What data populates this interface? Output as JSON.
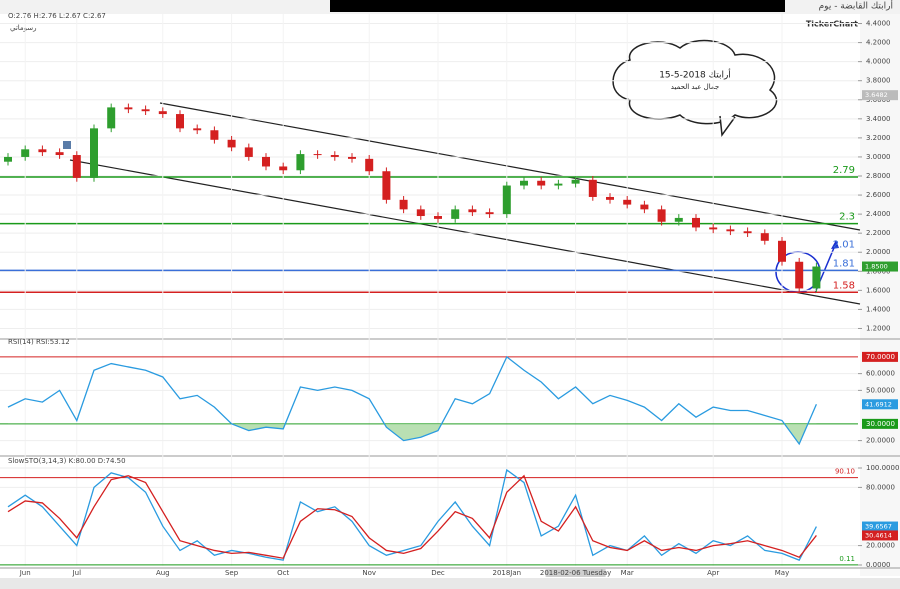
{
  "header": {
    "ohlc": "O:2.76 H:2.76 L:2.67 C:2.67",
    "subtitle": "رسوماتي",
    "title": "أرابتك القابضة - يوم",
    "brand": "TickerChart",
    "note_line1": "أرابتك 2018-5-15",
    "note_line2": "جمال عبد الحميد"
  },
  "chart_data": [
    {
      "type": "candlestick",
      "categories": [
        null,
        "Jun",
        null,
        null,
        "Jul",
        null,
        null,
        null,
        null,
        "Aug",
        null,
        null,
        null,
        "Sep",
        null,
        null,
        "Oct",
        null,
        null,
        null,
        null,
        "Nov",
        null,
        null,
        null,
        "Dec",
        null,
        null,
        null,
        "2018Jan",
        null,
        null,
        null,
        "2018-02-06 Tuesday",
        null,
        null,
        "Mar",
        null,
        null,
        null,
        null,
        "Apr",
        null,
        null,
        null,
        "May",
        null,
        null
      ],
      "open": [
        2.95,
        3.0,
        3.08,
        3.05,
        3.02,
        2.78,
        3.3,
        3.52,
        3.5,
        3.48,
        3.45,
        3.3,
        3.28,
        3.18,
        3.1,
        3.0,
        2.9,
        2.86,
        3.03,
        3.02,
        3.0,
        2.98,
        2.85,
        2.55,
        2.45,
        2.38,
        2.35,
        2.45,
        2.42,
        2.4,
        2.7,
        2.75,
        2.7,
        2.72,
        2.76,
        2.58,
        2.55,
        2.5,
        2.45,
        2.32,
        2.36,
        2.26,
        2.24,
        2.22,
        2.2,
        2.12,
        1.9,
        1.62
      ],
      "high": [
        3.04,
        3.12,
        3.12,
        3.09,
        3.06,
        3.34,
        3.56,
        3.56,
        3.54,
        3.52,
        3.49,
        3.34,
        3.32,
        3.22,
        3.14,
        3.04,
        2.94,
        3.07,
        3.07,
        3.06,
        3.04,
        3.02,
        2.89,
        2.59,
        2.49,
        2.42,
        2.49,
        2.49,
        2.46,
        2.74,
        2.79,
        2.79,
        2.76,
        2.8,
        2.8,
        2.62,
        2.59,
        2.54,
        2.49,
        2.4,
        2.4,
        2.3,
        2.28,
        2.26,
        2.24,
        2.16,
        1.94,
        1.89
      ],
      "low": [
        2.91,
        2.96,
        3.01,
        2.98,
        2.74,
        2.74,
        3.26,
        3.46,
        3.44,
        3.41,
        3.26,
        3.24,
        3.14,
        3.06,
        2.96,
        2.86,
        2.82,
        2.82,
        2.98,
        2.96,
        2.94,
        2.81,
        2.51,
        2.41,
        2.34,
        2.31,
        2.31,
        2.38,
        2.36,
        2.36,
        2.66,
        2.66,
        2.66,
        2.68,
        2.54,
        2.51,
        2.46,
        2.41,
        2.28,
        2.28,
        2.22,
        2.2,
        2.18,
        2.16,
        2.08,
        1.86,
        1.58,
        1.58
      ],
      "close": [
        3.0,
        3.08,
        3.05,
        3.02,
        2.78,
        3.3,
        3.52,
        3.5,
        3.48,
        3.45,
        3.3,
        3.28,
        3.18,
        3.1,
        3.0,
        2.9,
        2.86,
        3.03,
        3.02,
        3.0,
        2.98,
        2.85,
        2.55,
        2.45,
        2.38,
        2.35,
        2.45,
        2.42,
        2.4,
        2.7,
        2.75,
        2.7,
        2.72,
        2.76,
        2.58,
        2.55,
        2.5,
        2.45,
        2.32,
        2.36,
        2.26,
        2.24,
        2.22,
        2.2,
        2.12,
        1.9,
        1.62,
        1.85
      ],
      "up_color": "#2e9e2e",
      "down_color": "#d42020",
      "ylim": [
        1.1,
        4.5
      ],
      "yticks": [
        {
          "value": 1.2,
          "label": "1.2000"
        },
        {
          "value": 1.4,
          "label": "1.4000"
        },
        {
          "value": 1.6,
          "label": "1.6000"
        },
        {
          "value": 1.8,
          "label": "1.8000"
        },
        {
          "value": 2.0,
          "label": "2.0000"
        },
        {
          "value": 2.2,
          "label": "2.2000"
        },
        {
          "value": 2.4,
          "label": "2.4000"
        },
        {
          "value": 2.6,
          "label": "2.6000"
        },
        {
          "value": 2.8,
          "label": "2.8000"
        },
        {
          "value": 3.0,
          "label": "3.0000"
        },
        {
          "value": 3.2,
          "label": "3.2000"
        },
        {
          "value": 3.4,
          "label": "3.4000"
        },
        {
          "value": 3.6,
          "label": "3.6000"
        },
        {
          "value": 3.8,
          "label": "3.8000"
        },
        {
          "value": 4.0,
          "label": "4.0000"
        },
        {
          "value": 4.2,
          "label": "4.2000"
        },
        {
          "value": 4.4,
          "label": "4.4000"
        }
      ],
      "levels": [
        {
          "value": 2.79,
          "color": "#1a9a1a",
          "line": true
        },
        {
          "value": 2.3,
          "color": "#1a9a1a",
          "line": true
        },
        {
          "value": 2.01,
          "color": "#3a6fd8",
          "line": false
        },
        {
          "value": 1.81,
          "color": "#3a6fd8",
          "line": true
        },
        {
          "value": 1.58,
          "color": "#d42020",
          "line": true
        }
      ],
      "axis_labels": [
        {
          "value": 3.6482,
          "label": "3.6482",
          "color": "#bbbbbb"
        },
        {
          "value": 1.85,
          "label": "1.8500",
          "color": "#2e9e2e"
        }
      ]
    },
    {
      "type": "line",
      "title": "RSI(14) RSI:53.12",
      "series": [
        {
          "name": "RSI",
          "color": "#2a9be0",
          "values": [
            40,
            45,
            43,
            50,
            32,
            62,
            66,
            64,
            62,
            58,
            45,
            47,
            40,
            30,
            26,
            28,
            27,
            52,
            50,
            52,
            50,
            45,
            28,
            20,
            22,
            26,
            45,
            42,
            48,
            70,
            62,
            55,
            45,
            52,
            42,
            47,
            44,
            40,
            32,
            42,
            34,
            40,
            38,
            38,
            35,
            32,
            18,
            41.69
          ]
        }
      ],
      "fill_below": {
        "value": 30,
        "color": "#a8d8a0"
      },
      "ylim": [
        12,
        76.5
      ],
      "yticks": [
        {
          "value": 20,
          "label": "20.0000"
        },
        {
          "value": 50,
          "label": "50.0000"
        },
        {
          "value": 60,
          "label": "60.0000"
        }
      ],
      "levels": [
        {
          "value": 70,
          "label": "70.0000",
          "color": "#d42020"
        },
        {
          "value": 30,
          "label": "30.0000",
          "color": "#1a9a1a"
        }
      ],
      "axis_labels": [
        {
          "value": 41.6912,
          "label": "41.6912",
          "color": "#2a9be0"
        }
      ]
    },
    {
      "type": "line",
      "title": "SlowSTO(3,14,3) K:80.00 D:74.50",
      "series": [
        {
          "name": "K",
          "color": "#2a9be0",
          "values": [
            60,
            72,
            60,
            40,
            20,
            80,
            95,
            90,
            75,
            40,
            15,
            25,
            10,
            15,
            12,
            8,
            5,
            65,
            55,
            60,
            45,
            20,
            10,
            15,
            20,
            45,
            65,
            40,
            20,
            98,
            85,
            30,
            40,
            72,
            10,
            20,
            15,
            30,
            10,
            22,
            12,
            25,
            20,
            30,
            15,
            12,
            5,
            39.66
          ]
        },
        {
          "name": "D",
          "color": "#d42020",
          "values": [
            55,
            66,
            64,
            48,
            28,
            60,
            88,
            92,
            85,
            55,
            25,
            20,
            15,
            12,
            13,
            10,
            7,
            45,
            58,
            57,
            50,
            28,
            15,
            12,
            17,
            35,
            55,
            48,
            28,
            75,
            92,
            45,
            35,
            60,
            25,
            18,
            15,
            25,
            15,
            18,
            15,
            20,
            22,
            25,
            20,
            15,
            8,
            30.46
          ]
        }
      ],
      "ylim": [
        0,
        100
      ],
      "yticks": [
        {
          "value": 0,
          "label": "0.0000"
        },
        {
          "value": 20,
          "label": "20.0000"
        },
        {
          "value": 80,
          "label": "80.0000"
        },
        {
          "value": 100,
          "label": "100.0000"
        }
      ],
      "levels": [
        {
          "value": 90.1,
          "label": "90.10",
          "color": "#d42020"
        },
        {
          "value": 0.11,
          "label": "0.11",
          "color": "#1a9a1a"
        }
      ],
      "axis_labels": [
        {
          "value": 39.6567,
          "label": "39.6567",
          "color": "#2a9be0"
        },
        {
          "value": 30.4614,
          "label": "30.4614",
          "color": "#d42020"
        }
      ]
    }
  ]
}
